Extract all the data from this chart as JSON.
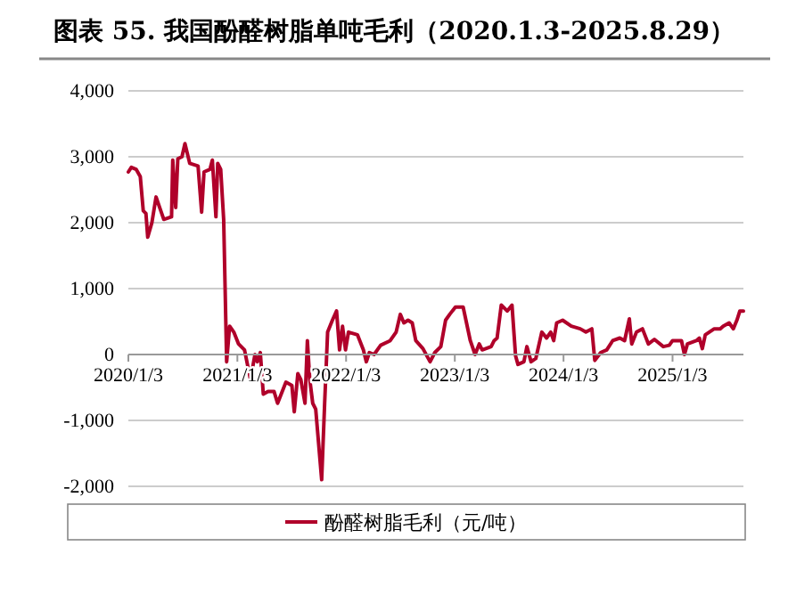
{
  "chart_data": {
    "type": "line",
    "title": "图表 55. 我国酚醛树脂单吨毛利（2020.1.3-2025.8.29）",
    "xlim": [
      "2020-01-03",
      "2025-08-29"
    ],
    "xticks": [
      {
        "value": "2020-01-03",
        "label": "2020/1/3"
      },
      {
        "value": "2021-01-03",
        "label": "2021/1/3"
      },
      {
        "value": "2022-01-03",
        "label": "2022/1/3"
      },
      {
        "value": "2023-01-03",
        "label": "2023/1/3"
      },
      {
        "value": "2024-01-03",
        "label": "2024/1/3"
      },
      {
        "value": "2025-01-03",
        "label": "2025/1/3"
      }
    ],
    "ylim": [
      -2000,
      4000
    ],
    "yticks": [
      {
        "value": -2000,
        "label": "-2,000"
      },
      {
        "value": -1000,
        "label": "-1,000"
      },
      {
        "value": 0,
        "label": "0"
      },
      {
        "value": 1000,
        "label": "1,000"
      },
      {
        "value": 2000,
        "label": "2,000"
      },
      {
        "value": 3000,
        "label": "3,000"
      },
      {
        "value": 4000,
        "label": "4,000"
      }
    ],
    "grid": "y",
    "legend": "bottom",
    "series": [
      {
        "name": "酚醛树脂毛利（元/吨）",
        "color": "#b0002a",
        "x": [
          "2020-01-03",
          "2020-01-13",
          "2020-01-29",
          "2020-02-12",
          "2020-02-22",
          "2020-03-02",
          "2020-03-08",
          "2020-03-22",
          "2020-04-05",
          "2020-04-17",
          "2020-05-01",
          "2020-05-27",
          "2020-05-31",
          "2020-06-10",
          "2020-06-17",
          "2020-07-01",
          "2020-07-11",
          "2020-07-27",
          "2020-08-24",
          "2020-09-05",
          "2020-09-13",
          "2020-10-03",
          "2020-10-11",
          "2020-10-23",
          "2020-10-29",
          "2020-11-08",
          "2020-11-18",
          "2020-11-28",
          "2020-12-08",
          "2020-12-22",
          "2021-01-07",
          "2021-01-27",
          "2021-02-16",
          "2021-03-03",
          "2021-03-11",
          "2021-03-21",
          "2021-03-31",
          "2021-04-16",
          "2021-05-06",
          "2021-05-18",
          "2021-06-15",
          "2021-07-05",
          "2021-07-13",
          "2021-07-25",
          "2021-08-04",
          "2021-08-18",
          "2021-08-26",
          "2021-09-03",
          "2021-09-13",
          "2021-09-23",
          "2021-10-13",
          "2021-10-23",
          "2021-11-02",
          "2021-11-18",
          "2021-12-02",
          "2021-12-12",
          "2021-12-22",
          "2022-01-01",
          "2022-01-11",
          "2022-02-10",
          "2022-03-02",
          "2022-03-12",
          "2022-03-22",
          "2022-04-07",
          "2022-04-29",
          "2022-05-31",
          "2022-06-20",
          "2022-07-04",
          "2022-07-16",
          "2022-07-30",
          "2022-08-13",
          "2022-08-25",
          "2022-09-18",
          "2022-10-12",
          "2022-10-28",
          "2022-11-17",
          "2022-12-03",
          "2022-12-17",
          "2023-01-05",
          "2023-01-31",
          "2023-02-24",
          "2023-03-12",
          "2023-03-26",
          "2023-04-05",
          "2023-05-05",
          "2023-05-15",
          "2023-05-25",
          "2023-06-08",
          "2023-06-28",
          "2023-07-14",
          "2023-07-26",
          "2023-08-03",
          "2023-08-23",
          "2023-09-02",
          "2023-09-16",
          "2023-10-02",
          "2023-10-22",
          "2023-11-07",
          "2023-11-21",
          "2023-12-01",
          "2023-12-11",
          "2023-12-31",
          "2024-01-29",
          "2024-02-28",
          "2024-03-18",
          "2024-04-07",
          "2024-04-17",
          "2024-05-07",
          "2024-05-27",
          "2024-06-16",
          "2024-07-10",
          "2024-07-26",
          "2024-08-11",
          "2024-08-19",
          "2024-09-04",
          "2024-09-24",
          "2024-10-14",
          "2024-11-03",
          "2024-12-03",
          "2024-12-23",
          "2025-01-03",
          "2025-02-02",
          "2025-02-12",
          "2025-02-22",
          "2025-03-24",
          "2025-04-03",
          "2025-04-13",
          "2025-04-23",
          "2025-05-23",
          "2025-06-12",
          "2025-06-22",
          "2025-07-12",
          "2025-07-26",
          "2025-08-07",
          "2025-08-17",
          "2025-08-29"
        ],
        "values": [
          2770,
          2840,
          2810,
          2700,
          2180,
          2140,
          1780,
          2000,
          2390,
          2230,
          2050,
          2090,
          2950,
          2230,
          2970,
          3000,
          3200,
          2900,
          2860,
          2160,
          2770,
          2810,
          2950,
          2090,
          2900,
          2810,
          2050,
          -110,
          430,
          340,
          160,
          70,
          -380,
          0,
          -110,
          30,
          -600,
          -560,
          -560,
          -740,
          -420,
          -470,
          -870,
          -290,
          -380,
          -740,
          210,
          -380,
          -740,
          -830,
          -1900,
          -740,
          340,
          520,
          660,
          70,
          430,
          70,
          340,
          300,
          70,
          -110,
          30,
          0,
          140,
          210,
          340,
          610,
          480,
          520,
          480,
          210,
          90,
          -110,
          30,
          120,
          520,
          610,
          720,
          720,
          210,
          0,
          160,
          70,
          120,
          210,
          250,
          750,
          660,
          750,
          -20,
          -150,
          -110,
          120,
          -110,
          -60,
          340,
          250,
          340,
          210,
          480,
          520,
          430,
          390,
          340,
          390,
          -90,
          30,
          70,
          210,
          250,
          210,
          540,
          160,
          340,
          390,
          160,
          230,
          120,
          140,
          210,
          210,
          0,
          160,
          210,
          250,
          90,
          300,
          390,
          390,
          430,
          480,
          390,
          520,
          660,
          660
        ]
      }
    ]
  }
}
